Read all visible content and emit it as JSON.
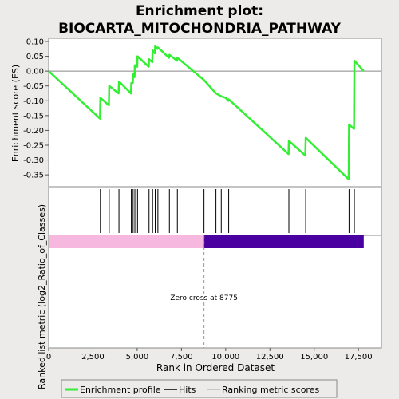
{
  "title_line1": "Enrichment plot:",
  "title_line2": "BIOCARTA_MITOCHONDRIA_PATHWAY",
  "legend": {
    "enrichment_profile": "Enrichment profile",
    "hits": "Hits",
    "ranking_metric": "Ranking metric scores"
  },
  "colors": {
    "background": "#ecebe9",
    "panel": "#ffffff",
    "profile_line": "#33ee33",
    "hit_line": "#000000",
    "positive_bar": "#f7b8e0",
    "negative_bar": "#4a00a0",
    "zero_line": "#999999"
  },
  "chart_data": {
    "type": "line",
    "xlabel": "Rank in Ordered Dataset",
    "ylabel_top": "Enrichment score (ES)",
    "ylabel_bottom": "Ranked list metric (log2_Ratio_of_Classes)",
    "xlim": [
      0,
      18800
    ],
    "ylim": [
      -0.39,
      0.1
    ],
    "xticks": [
      0,
      2500,
      5000,
      7500,
      10000,
      12500,
      15000,
      17500
    ],
    "xtick_labels": [
      "0",
      "2,500",
      "5,000",
      "7,500",
      "10,000",
      "12,500",
      "15,000",
      "17,500"
    ],
    "yticks": [
      0.1,
      0.05,
      0.0,
      -0.05,
      -0.1,
      -0.15,
      -0.2,
      -0.25,
      -0.3,
      -0.35
    ],
    "ytick_labels": [
      "0.10",
      "0.05",
      "0.00",
      "-0.05",
      "-0.10",
      "-0.15",
      "-0.20",
      "-0.25",
      "-0.30",
      "-0.35"
    ],
    "grid": false,
    "legend_position": "bottom",
    "es_profile": {
      "x": [
        0,
        2900,
        2920,
        3400,
        3420,
        3950,
        3970,
        4650,
        4670,
        4750,
        4770,
        4850,
        4870,
        5000,
        5020,
        5650,
        5670,
        5850,
        5870,
        6000,
        6020,
        6150,
        6170,
        6800,
        6820,
        7250,
        7270,
        8775,
        9450,
        9750,
        10000,
        10150,
        10170,
        13550,
        13570,
        14500,
        14520,
        16950,
        16970,
        17250,
        17270,
        17800
      ],
      "y": [
        0.0,
        -0.16,
        -0.09,
        -0.115,
        -0.05,
        -0.075,
        -0.035,
        -0.075,
        -0.04,
        -0.04,
        -0.01,
        -0.02,
        0.02,
        0.015,
        0.05,
        0.015,
        0.04,
        0.03,
        0.07,
        0.06,
        0.085,
        0.075,
        0.08,
        0.045,
        0.055,
        0.035,
        0.045,
        -0.03,
        -0.075,
        -0.085,
        -0.09,
        -0.1,
        -0.095,
        -0.28,
        -0.235,
        -0.285,
        -0.225,
        -0.365,
        -0.18,
        -0.195,
        0.035,
        0.0
      ]
    },
    "hits": [
      2920,
      3420,
      3970,
      4670,
      4770,
      4870,
      5020,
      5670,
      5870,
      6020,
      6170,
      6820,
      7270,
      8775,
      9450,
      9750,
      10170,
      13570,
      14520,
      16970,
      17270
    ],
    "ranking_metric": {
      "zero_cross": 8775,
      "n_genes": 17800,
      "annotation": "Zero cross at 8775"
    }
  }
}
